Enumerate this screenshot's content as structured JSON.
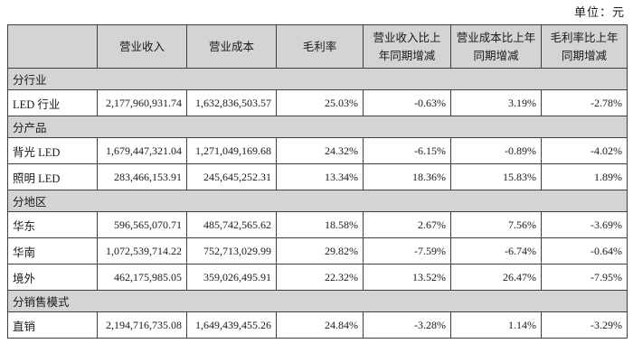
{
  "unit_label": "单位：元",
  "colors": {
    "header_bg": "#d4d4d4",
    "row_bg": "#ffffff",
    "border": "#3f3f3f"
  },
  "table": {
    "columns": [
      "",
      "营业收入",
      "营业成本",
      "毛利率",
      "营业收入比上年同期增减",
      "营业成本比上年同期增减",
      "毛利率比上年同期增减"
    ],
    "sections": [
      {
        "label": "分行业",
        "rows": [
          {
            "name": "LED 行业",
            "values": [
              "2,177,960,931.74",
              "1,632,836,503.57",
              "25.03%",
              "-0.63%",
              "3.19%",
              "-2.78%"
            ]
          }
        ]
      },
      {
        "label": "分产品",
        "rows": [
          {
            "name": "背光 LED",
            "values": [
              "1,679,447,321.04",
              "1,271,049,169.68",
              "24.32%",
              "-6.15%",
              "-0.89%",
              "-4.02%"
            ]
          },
          {
            "name": "照明 LED",
            "values": [
              "283,466,153.91",
              "245,645,252.31",
              "13.34%",
              "18.36%",
              "15.83%",
              "1.89%"
            ]
          }
        ]
      },
      {
        "label": "分地区",
        "rows": [
          {
            "name": "华东",
            "values": [
              "596,565,070.71",
              "485,742,565.62",
              "18.58%",
              "2.67%",
              "7.56%",
              "-3.69%"
            ]
          },
          {
            "name": "华南",
            "values": [
              "1,072,539,714.22",
              "752,713,029.99",
              "29.82%",
              "-7.59%",
              "-6.74%",
              "-0.64%"
            ]
          },
          {
            "name": "境外",
            "values": [
              "462,175,985.05",
              "359,026,495.91",
              "22.32%",
              "13.52%",
              "26.47%",
              "-7.95%"
            ]
          }
        ]
      },
      {
        "label": "分销售模式",
        "rows": [
          {
            "name": "直销",
            "values": [
              "2,194,716,735.08",
              "1,649,439,455.26",
              "24.84%",
              "-3.28%",
              "1.14%",
              "-3.29%"
            ]
          }
        ]
      }
    ]
  }
}
